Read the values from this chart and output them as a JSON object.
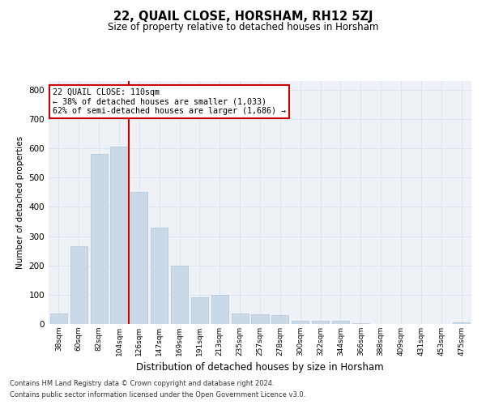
{
  "title1": "22, QUAIL CLOSE, HORSHAM, RH12 5ZJ",
  "title2": "Size of property relative to detached houses in Horsham",
  "xlabel": "Distribution of detached houses by size in Horsham",
  "ylabel": "Number of detached properties",
  "footnote1": "Contains HM Land Registry data © Crown copyright and database right 2024.",
  "footnote2": "Contains public sector information licensed under the Open Government Licence v3.0.",
  "categories": [
    "38sqm",
    "60sqm",
    "82sqm",
    "104sqm",
    "126sqm",
    "147sqm",
    "169sqm",
    "191sqm",
    "213sqm",
    "235sqm",
    "257sqm",
    "278sqm",
    "300sqm",
    "322sqm",
    "344sqm",
    "366sqm",
    "388sqm",
    "409sqm",
    "431sqm",
    "453sqm",
    "475sqm"
  ],
  "values": [
    35,
    265,
    580,
    605,
    450,
    330,
    198,
    90,
    100,
    37,
    33,
    30,
    12,
    10,
    10,
    2,
    0,
    0,
    0,
    0,
    5
  ],
  "bar_color": "#c9d9e8",
  "bar_edgecolor": "#b0c4d8",
  "grid_color": "#dce6f0",
  "bg_color": "#eef2f7",
  "red_line_x": 3.5,
  "annotation_line1": "22 QUAIL CLOSE: 110sqm",
  "annotation_line2": "← 38% of detached houses are smaller (1,033)",
  "annotation_line3": "62% of semi-detached houses are larger (1,686) →",
  "annotation_box_color": "#ffffff",
  "annotation_border_color": "#cc0000",
  "red_line_color": "#cc0000",
  "ylim": [
    0,
    830
  ],
  "yticks": [
    0,
    100,
    200,
    300,
    400,
    500,
    600,
    700,
    800
  ]
}
